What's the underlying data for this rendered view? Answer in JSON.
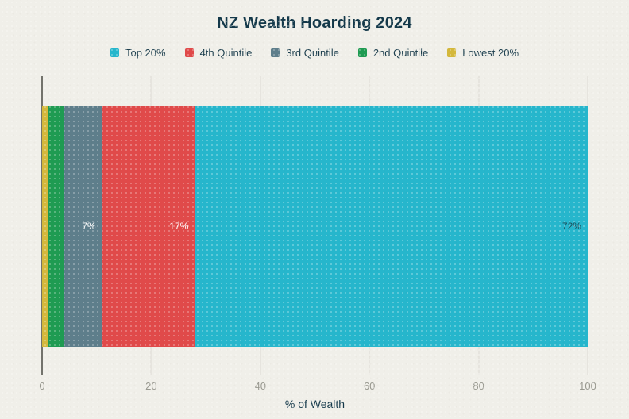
{
  "title": "NZ Wealth Hoarding 2024",
  "chart_data": {
    "type": "bar",
    "variant": "horizontal-stacked",
    "title": "NZ Wealth Hoarding 2024",
    "xlabel": "% of Wealth",
    "xlim": [
      0,
      100
    ],
    "xticks": [
      0,
      20,
      40,
      60,
      80,
      100
    ],
    "grid": true,
    "legend_position": "top-center",
    "series": [
      {
        "name": "Top 20%",
        "value": 72,
        "color": "#26b6cc",
        "label": "72%",
        "label_color": "#1d4e5a"
      },
      {
        "name": "4th Quintile",
        "value": 17,
        "color": "#e04a4a",
        "label": "17%",
        "label_color": "#ffffff"
      },
      {
        "name": "3rd Quintile",
        "value": 7,
        "color": "#5e7e8b",
        "label": "7%",
        "label_color": "#ffffff"
      },
      {
        "name": "2nd Quintile",
        "value": 3,
        "color": "#1f9b52",
        "label": "",
        "label_color": "#ffffff"
      },
      {
        "name": "Lowest 20%",
        "value": 1,
        "color": "#d4b83c",
        "label": "",
        "label_color": "#ffffff"
      }
    ],
    "stack_order_left_to_right": [
      "Lowest 20%",
      "2nd Quintile",
      "3rd Quintile",
      "4th Quintile",
      "Top 20%"
    ]
  },
  "colors": {
    "background": "#f0efe9",
    "title_text": "#14394a",
    "tick_text": "#98988f",
    "gridline": "#dcdad2",
    "zero_line": "#73736c"
  }
}
